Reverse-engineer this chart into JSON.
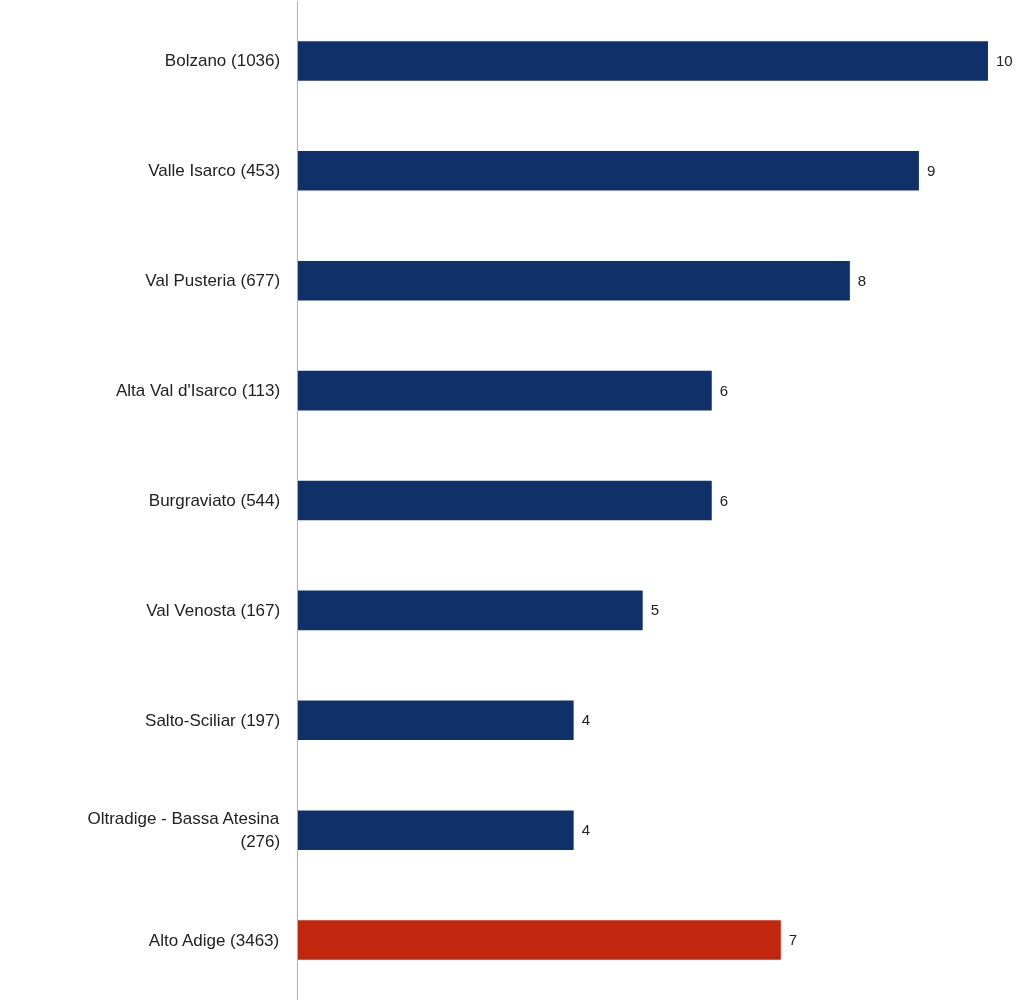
{
  "chart_data": {
    "type": "bar",
    "orientation": "horizontal",
    "categories": [
      "Bolzano (1036)",
      "Valle Isarco (453)",
      "Val Pusteria (677)",
      "Alta Val d'Isarco (113)",
      "Burgraviato (544)",
      "Val Venosta (167)",
      "Salto-Sciliar (197)",
      "Oltradige - Bassa Atesina (276)",
      "Alto Adige (3463)"
    ],
    "values": [
      10,
      9,
      8,
      6,
      6,
      5,
      4,
      4,
      7
    ],
    "colors": [
      "#10306a",
      "#10306a",
      "#10306a",
      "#10306a",
      "#10306a",
      "#10306a",
      "#10306a",
      "#10306a",
      "#c1260f"
    ],
    "data_labels": true
  }
}
